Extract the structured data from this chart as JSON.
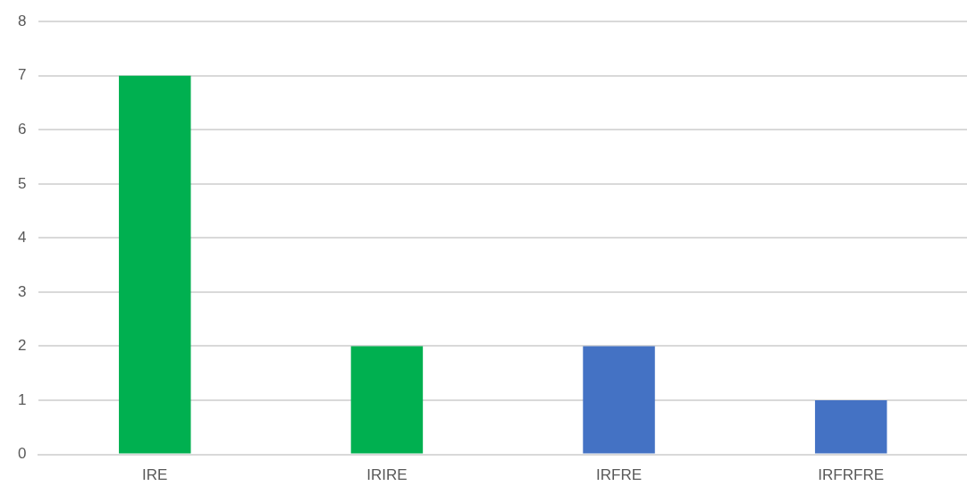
{
  "chart_data": {
    "type": "bar",
    "categories": [
      "IRE",
      "IRIRE",
      "IRFRE",
      "IRFRFRE"
    ],
    "values": [
      7,
      2,
      2,
      1
    ],
    "colors": [
      "#00b050",
      "#00b050",
      "#4472c4",
      "#4472c4"
    ],
    "ylim": [
      0,
      8
    ],
    "yticks": [
      0,
      1,
      2,
      3,
      4,
      5,
      6,
      7,
      8
    ],
    "grid": "y",
    "legend": false
  }
}
